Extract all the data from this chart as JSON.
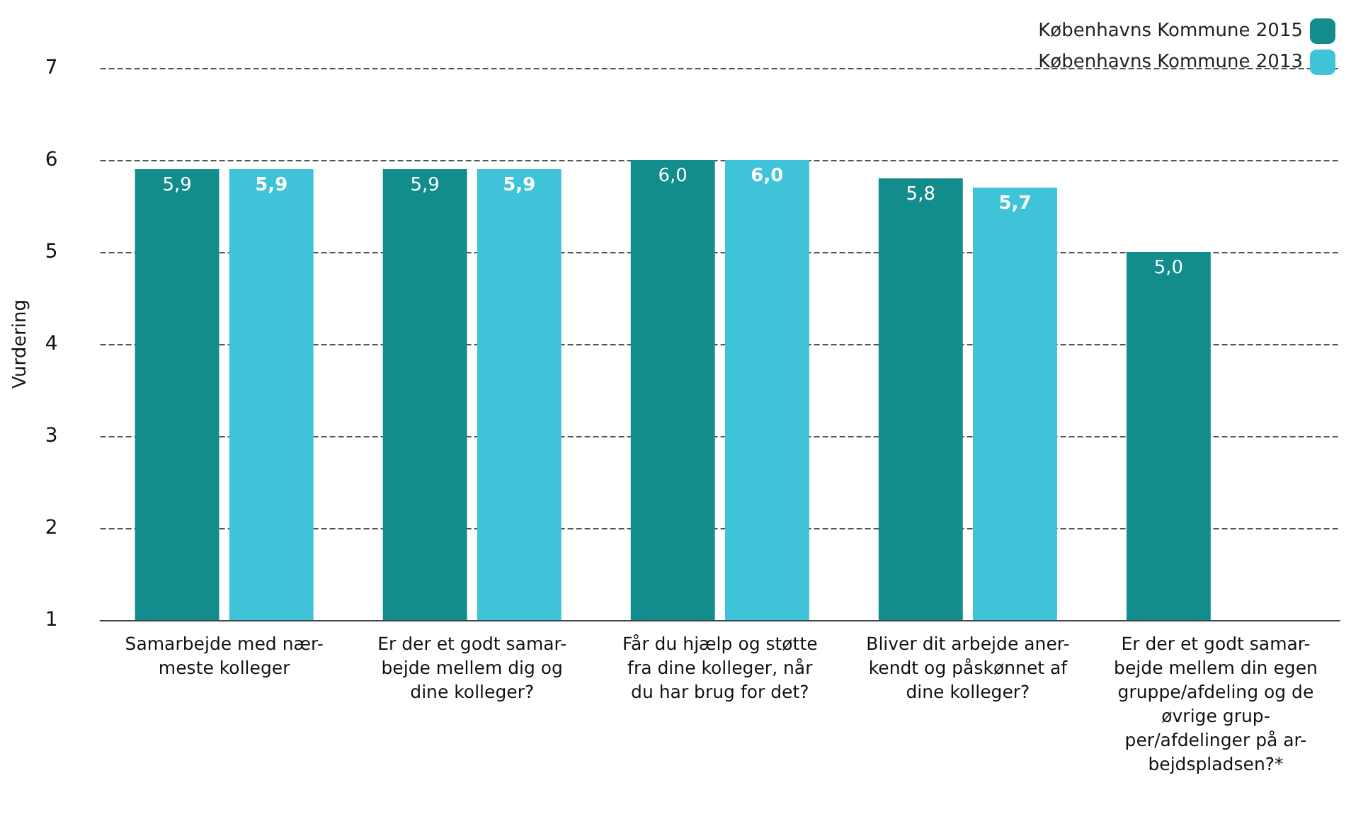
{
  "chart_data": {
    "type": "bar",
    "ylabel": "Vurdering",
    "categories": [
      "Samarbejde med nær-\nmeste kolleger",
      "Er der et godt samar-\nbejde mellem dig og\ndine kolleger?",
      "Får du hjælp og støtte\nfra dine kolleger, når\ndu har brug for det?",
      "Bliver dit arbejde aner-\nkendt og påskønnet af\ndine kolleger?",
      "Er der et godt samar-\nbejde mellem din egen\ngruppe/afdeling og de\nøvrige grup-\nper/afdelinger på ar-\nbejdspladsen?*"
    ],
    "series": [
      {
        "name": "Københavns Kommune 2015",
        "color": "#138c8c",
        "values": [
          5.9,
          5.9,
          6.0,
          5.8,
          5.0
        ],
        "value_labels": [
          "5,9",
          "5,9",
          "6,0",
          "5,8",
          "5,0"
        ]
      },
      {
        "name": "Københavns Kommune 2013",
        "color": "#3ec3d8",
        "values": [
          5.9,
          5.9,
          6.0,
          5.7,
          null
        ],
        "value_labels": [
          "5,9",
          "5,9",
          "6,0",
          "5,7",
          null
        ]
      }
    ],
    "ylim": [
      1,
      7
    ],
    "yticks": [
      1,
      2,
      3,
      4,
      5,
      6,
      7
    ],
    "grid": "y",
    "legend": "top right"
  }
}
